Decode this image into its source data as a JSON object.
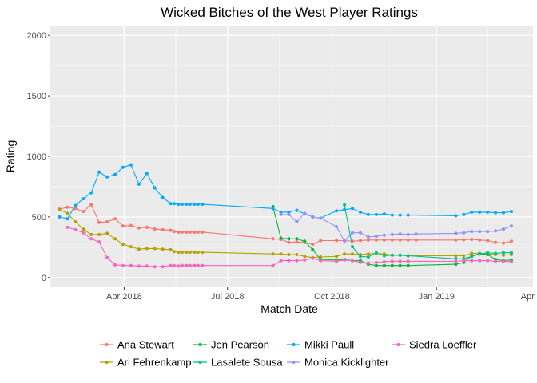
{
  "chart_data": {
    "type": "line",
    "title": "Wicked Bitches of the West Player Ratings",
    "xlabel": "Match Date",
    "ylabel": "Rating",
    "xlim": [
      "2018-01-26",
      "2019-03-27"
    ],
    "ylim": [
      -80,
      2080
    ],
    "x_ticks": [
      {
        "date": "2018-04-01",
        "label": "Apr 2018"
      },
      {
        "date": "2018-07-01",
        "label": "Jul 2018"
      },
      {
        "date": "2018-10-01",
        "label": "Oct 2018"
      },
      {
        "date": "2019-01-01",
        "label": "Jan 2019"
      },
      {
        "date": "2019-04-01",
        "label": "Apr 2019"
      }
    ],
    "y_ticks": [
      0,
      500,
      1000,
      1500,
      2000
    ],
    "grid": true,
    "background": "#ebebeb",
    "legend_position": "bottom",
    "series": [
      {
        "name": "Ana Stewart",
        "color": "#F8766D",
        "points": [
          [
            "2018-02-03",
            565
          ],
          [
            "2018-02-10",
            580
          ],
          [
            "2018-02-17",
            570
          ],
          [
            "2018-02-24",
            545
          ],
          [
            "2018-03-03",
            600
          ],
          [
            "2018-03-10",
            455
          ],
          [
            "2018-03-17",
            460
          ],
          [
            "2018-03-24",
            485
          ],
          [
            "2018-03-31",
            425
          ],
          [
            "2018-04-07",
            430
          ],
          [
            "2018-04-14",
            410
          ],
          [
            "2018-04-21",
            415
          ],
          [
            "2018-04-28",
            400
          ],
          [
            "2018-05-05",
            395
          ],
          [
            "2018-05-12",
            390
          ],
          [
            "2018-05-15",
            380
          ],
          [
            "2018-05-19",
            375
          ],
          [
            "2018-05-22",
            375
          ],
          [
            "2018-05-26",
            375
          ],
          [
            "2018-05-29",
            375
          ],
          [
            "2018-06-02",
            375
          ],
          [
            "2018-06-05",
            375
          ],
          [
            "2018-06-09",
            375
          ],
          [
            "2018-08-10",
            320
          ],
          [
            "2018-08-17",
            315
          ],
          [
            "2018-08-24",
            290
          ],
          [
            "2018-08-31",
            295
          ],
          [
            "2018-09-07",
            290
          ],
          [
            "2018-09-14",
            275
          ],
          [
            "2018-09-21",
            305
          ],
          [
            "2018-10-05",
            305
          ],
          [
            "2018-10-12",
            305
          ],
          [
            "2018-10-19",
            300
          ],
          [
            "2018-10-26",
            305
          ],
          [
            "2018-11-02",
            310
          ],
          [
            "2018-11-09",
            310
          ],
          [
            "2018-11-16",
            310
          ],
          [
            "2018-11-23",
            310
          ],
          [
            "2018-11-30",
            310
          ],
          [
            "2018-12-07",
            310
          ],
          [
            "2018-12-14",
            310
          ],
          [
            "2019-01-18",
            310
          ],
          [
            "2019-01-25",
            312
          ],
          [
            "2019-02-01",
            315
          ],
          [
            "2019-02-08",
            310
          ],
          [
            "2019-02-15",
            305
          ],
          [
            "2019-02-22",
            290
          ],
          [
            "2019-03-01",
            285
          ],
          [
            "2019-03-08",
            300
          ]
        ]
      },
      {
        "name": "Ari Fehrenkamp",
        "color": "#B79F00",
        "points": [
          [
            "2018-02-03",
            560
          ],
          [
            "2018-02-10",
            530
          ],
          [
            "2018-02-17",
            460
          ],
          [
            "2018-02-24",
            400
          ],
          [
            "2018-03-03",
            355
          ],
          [
            "2018-03-10",
            355
          ],
          [
            "2018-03-17",
            365
          ],
          [
            "2018-03-24",
            320
          ],
          [
            "2018-03-31",
            275
          ],
          [
            "2018-04-07",
            255
          ],
          [
            "2018-04-14",
            235
          ],
          [
            "2018-04-21",
            240
          ],
          [
            "2018-04-28",
            240
          ],
          [
            "2018-05-05",
            235
          ],
          [
            "2018-05-12",
            230
          ],
          [
            "2018-05-15",
            215
          ],
          [
            "2018-05-19",
            210
          ],
          [
            "2018-05-22",
            210
          ],
          [
            "2018-05-26",
            210
          ],
          [
            "2018-05-29",
            210
          ],
          [
            "2018-06-02",
            210
          ],
          [
            "2018-06-05",
            210
          ],
          [
            "2018-06-09",
            210
          ],
          [
            "2018-08-10",
            195
          ],
          [
            "2018-08-17",
            195
          ],
          [
            "2018-08-24",
            190
          ],
          [
            "2018-08-31",
            190
          ],
          [
            "2018-09-07",
            175
          ],
          [
            "2018-09-14",
            165
          ],
          [
            "2018-09-21",
            170
          ],
          [
            "2018-10-05",
            175
          ],
          [
            "2018-10-12",
            195
          ],
          [
            "2018-10-19",
            195
          ],
          [
            "2018-10-26",
            190
          ],
          [
            "2018-11-02",
            195
          ],
          [
            "2018-11-09",
            200
          ],
          [
            "2018-11-16",
            195
          ],
          [
            "2018-11-23",
            185
          ],
          [
            "2018-11-30",
            185
          ],
          [
            "2018-12-07",
            180
          ],
          [
            "2019-01-18",
            180
          ],
          [
            "2019-01-25",
            180
          ],
          [
            "2019-02-01",
            200
          ],
          [
            "2019-02-08",
            200
          ],
          [
            "2019-02-15",
            195
          ],
          [
            "2019-02-22",
            190
          ],
          [
            "2019-03-01",
            185
          ],
          [
            "2019-03-08",
            190
          ]
        ]
      },
      {
        "name": "Jen Pearson",
        "color": "#00BA38",
        "points": [
          [
            "2018-08-10",
            585
          ],
          [
            "2018-08-17",
            325
          ],
          [
            "2018-08-24",
            320
          ],
          [
            "2018-08-31",
            320
          ],
          [
            "2018-09-07",
            300
          ],
          [
            "2018-09-14",
            230
          ],
          [
            "2018-09-21",
            150
          ],
          [
            "2018-10-05",
            145
          ],
          [
            "2018-10-12",
            150
          ],
          [
            "2018-10-19",
            140
          ],
          [
            "2018-10-26",
            140
          ],
          [
            "2018-11-02",
            110
          ],
          [
            "2018-11-09",
            100
          ],
          [
            "2018-11-16",
            100
          ],
          [
            "2018-11-23",
            100
          ],
          [
            "2018-11-30",
            100
          ],
          [
            "2018-12-07",
            100
          ],
          [
            "2019-01-18",
            110
          ],
          [
            "2019-01-25",
            125
          ],
          [
            "2019-02-01",
            180
          ],
          [
            "2019-02-08",
            195
          ],
          [
            "2019-02-15",
            190
          ],
          [
            "2019-02-22",
            150
          ],
          [
            "2019-03-01",
            140
          ],
          [
            "2019-03-08",
            145
          ]
        ]
      },
      {
        "name": "Lasalete Sousa",
        "color": "#00C08B",
        "points": [
          [
            "2018-10-12",
            600
          ],
          [
            "2018-10-19",
            255
          ],
          [
            "2018-10-26",
            175
          ],
          [
            "2018-11-02",
            170
          ],
          [
            "2018-11-09",
            205
          ],
          [
            "2018-11-16",
            180
          ],
          [
            "2018-11-23",
            185
          ],
          [
            "2018-11-30",
            185
          ],
          [
            "2018-12-07",
            180
          ],
          [
            "2019-01-18",
            155
          ],
          [
            "2019-01-25",
            155
          ],
          [
            "2019-02-01",
            175
          ],
          [
            "2019-02-08",
            195
          ],
          [
            "2019-02-15",
            205
          ],
          [
            "2019-02-22",
            200
          ],
          [
            "2019-03-01",
            205
          ],
          [
            "2019-03-08",
            205
          ]
        ]
      },
      {
        "name": "Mikki Paull",
        "color": "#00A9FF",
        "points": [
          [
            "2018-02-03",
            500
          ],
          [
            "2018-02-10",
            485
          ],
          [
            "2018-02-17",
            595
          ],
          [
            "2018-02-24",
            650
          ],
          [
            "2018-03-03",
            700
          ],
          [
            "2018-03-10",
            870
          ],
          [
            "2018-03-17",
            830
          ],
          [
            "2018-03-24",
            850
          ],
          [
            "2018-03-31",
            910
          ],
          [
            "2018-04-07",
            930
          ],
          [
            "2018-04-14",
            770
          ],
          [
            "2018-04-21",
            860
          ],
          [
            "2018-04-28",
            740
          ],
          [
            "2018-05-05",
            660
          ],
          [
            "2018-05-12",
            610
          ],
          [
            "2018-05-15",
            610
          ],
          [
            "2018-05-19",
            605
          ],
          [
            "2018-05-22",
            605
          ],
          [
            "2018-05-26",
            605
          ],
          [
            "2018-05-29",
            605
          ],
          [
            "2018-06-02",
            605
          ],
          [
            "2018-06-05",
            605
          ],
          [
            "2018-06-09",
            605
          ],
          [
            "2018-08-10",
            570
          ],
          [
            "2018-08-17",
            540
          ],
          [
            "2018-08-24",
            540
          ],
          [
            "2018-08-31",
            555
          ],
          [
            "2018-09-07",
            525
          ],
          [
            "2018-09-14",
            500
          ],
          [
            "2018-09-21",
            490
          ],
          [
            "2018-10-05",
            550
          ],
          [
            "2018-10-12",
            560
          ],
          [
            "2018-10-19",
            570
          ],
          [
            "2018-10-26",
            540
          ],
          [
            "2018-11-02",
            520
          ],
          [
            "2018-11-09",
            520
          ],
          [
            "2018-11-16",
            525
          ],
          [
            "2018-11-23",
            515
          ],
          [
            "2018-11-30",
            515
          ],
          [
            "2018-12-07",
            515
          ],
          [
            "2019-01-18",
            510
          ],
          [
            "2019-01-25",
            520
          ],
          [
            "2019-02-01",
            540
          ],
          [
            "2019-02-08",
            540
          ],
          [
            "2019-02-15",
            540
          ],
          [
            "2019-02-22",
            535
          ],
          [
            "2019-03-01",
            535
          ],
          [
            "2019-03-08",
            545
          ]
        ]
      },
      {
        "name": "Monica Kicklighter",
        "color": "#9590FF",
        "points": [
          [
            "2018-08-17",
            520
          ],
          [
            "2018-08-24",
            520
          ],
          [
            "2018-08-31",
            460
          ],
          [
            "2018-09-07",
            530
          ],
          [
            "2018-09-14",
            500
          ],
          [
            "2018-09-21",
            490
          ],
          [
            "2018-10-05",
            420
          ],
          [
            "2018-10-12",
            300
          ],
          [
            "2018-10-19",
            370
          ],
          [
            "2018-10-26",
            370
          ],
          [
            "2018-11-02",
            335
          ],
          [
            "2018-11-09",
            340
          ],
          [
            "2018-11-16",
            350
          ],
          [
            "2018-11-23",
            355
          ],
          [
            "2018-11-30",
            360
          ],
          [
            "2018-12-07",
            355
          ],
          [
            "2018-12-14",
            360
          ],
          [
            "2019-01-18",
            365
          ],
          [
            "2019-01-25",
            370
          ],
          [
            "2019-02-01",
            380
          ],
          [
            "2019-02-08",
            380
          ],
          [
            "2019-02-15",
            380
          ],
          [
            "2019-02-22",
            385
          ],
          [
            "2019-03-01",
            400
          ],
          [
            "2019-03-08",
            425
          ]
        ]
      },
      {
        "name": "Siedra Loeffler",
        "color": "#FF62BC",
        "points": [
          [
            "2018-02-10",
            415
          ],
          [
            "2018-02-17",
            395
          ],
          [
            "2018-02-24",
            370
          ],
          [
            "2018-03-03",
            320
          ],
          [
            "2018-03-10",
            295
          ],
          [
            "2018-03-17",
            165
          ],
          [
            "2018-03-24",
            105
          ],
          [
            "2018-03-31",
            100
          ],
          [
            "2018-04-07",
            100
          ],
          [
            "2018-04-14",
            95
          ],
          [
            "2018-04-21",
            95
          ],
          [
            "2018-04-28",
            90
          ],
          [
            "2018-05-05",
            90
          ],
          [
            "2018-05-12",
            100
          ],
          [
            "2018-05-15",
            100
          ],
          [
            "2018-05-19",
            95
          ],
          [
            "2018-05-22",
            100
          ],
          [
            "2018-05-26",
            100
          ],
          [
            "2018-05-29",
            100
          ],
          [
            "2018-06-02",
            100
          ],
          [
            "2018-06-05",
            100
          ],
          [
            "2018-06-09",
            100
          ],
          [
            "2018-08-10",
            100
          ],
          [
            "2018-08-17",
            140
          ],
          [
            "2018-08-24",
            140
          ],
          [
            "2018-08-31",
            140
          ],
          [
            "2018-09-07",
            145
          ],
          [
            "2018-09-14",
            160
          ],
          [
            "2018-09-21",
            140
          ],
          [
            "2018-10-05",
            135
          ],
          [
            "2018-10-12",
            145
          ],
          [
            "2018-10-19",
            140
          ],
          [
            "2018-10-26",
            125
          ],
          [
            "2018-11-02",
            120
          ],
          [
            "2018-11-09",
            125
          ],
          [
            "2018-11-16",
            130
          ],
          [
            "2018-11-23",
            135
          ],
          [
            "2018-11-30",
            135
          ],
          [
            "2018-12-07",
            135
          ],
          [
            "2019-01-18",
            135
          ],
          [
            "2019-01-25",
            140
          ],
          [
            "2019-02-01",
            140
          ],
          [
            "2019-02-08",
            140
          ],
          [
            "2019-02-15",
            140
          ],
          [
            "2019-02-22",
            135
          ],
          [
            "2019-03-01",
            135
          ],
          [
            "2019-03-08",
            130
          ]
        ]
      }
    ]
  }
}
